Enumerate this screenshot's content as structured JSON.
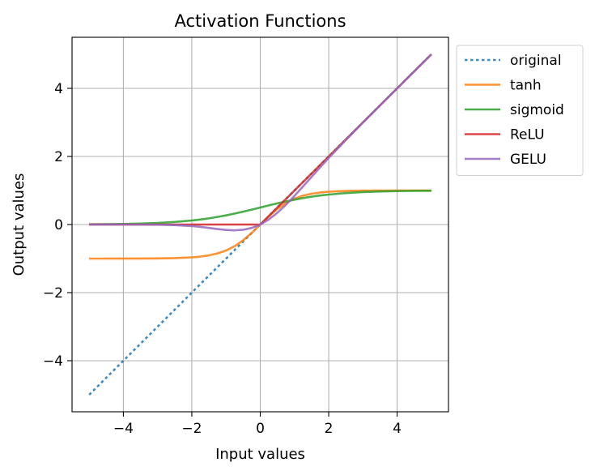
{
  "chart_data": {
    "type": "line",
    "title": "Activation Functions",
    "xlabel": "Input values",
    "ylabel": "Output values",
    "xlim": [
      -5.5,
      5.5
    ],
    "ylim": [
      -5.5,
      5.5
    ],
    "x_ticks": [
      -4,
      -2,
      0,
      2,
      4
    ],
    "y_ticks": [
      -4,
      -2,
      0,
      2,
      4
    ],
    "x_tick_labels": [
      "−4",
      "−2",
      "0",
      "2",
      "4"
    ],
    "y_tick_labels": [
      "−4",
      "−2",
      "0",
      "2",
      "4"
    ],
    "grid": true,
    "legend_position": "outside-upper-right",
    "x": [
      -5,
      -4.5,
      -4,
      -3.5,
      -3,
      -2.5,
      -2,
      -1.75,
      -1.5,
      -1.25,
      -1,
      -0.75,
      -0.5,
      -0.25,
      0,
      0.25,
      0.5,
      0.75,
      1,
      1.25,
      1.5,
      1.75,
      2,
      2.5,
      3,
      3.5,
      4,
      4.5,
      5
    ],
    "series": [
      {
        "name": "original",
        "color": "#1f77b4",
        "dash": "dotted",
        "values": [
          -5,
          -4.5,
          -4,
          -3.5,
          -3,
          -2.5,
          -2,
          -1.75,
          -1.5,
          -1.25,
          -1,
          -0.75,
          -0.5,
          -0.25,
          0,
          0.25,
          0.5,
          0.75,
          1,
          1.25,
          1.5,
          1.75,
          2,
          2.5,
          3,
          3.5,
          4,
          4.5,
          5
        ]
      },
      {
        "name": "tanh",
        "color": "#ff7f0e",
        "dash": "solid",
        "values": [
          -1.0,
          -1.0,
          -0.999,
          -0.998,
          -0.995,
          -0.987,
          -0.964,
          -0.941,
          -0.905,
          -0.848,
          -0.762,
          -0.635,
          -0.462,
          -0.245,
          0,
          0.245,
          0.462,
          0.635,
          0.762,
          0.848,
          0.905,
          0.941,
          0.964,
          0.987,
          0.995,
          0.998,
          0.999,
          1.0,
          1.0
        ]
      },
      {
        "name": "sigmoid",
        "color": "#2ca02c",
        "dash": "solid",
        "values": [
          0.007,
          0.011,
          0.018,
          0.029,
          0.047,
          0.076,
          0.119,
          0.148,
          0.182,
          0.223,
          0.269,
          0.321,
          0.378,
          0.438,
          0.5,
          0.562,
          0.622,
          0.679,
          0.731,
          0.777,
          0.818,
          0.852,
          0.881,
          0.924,
          0.953,
          0.971,
          0.982,
          0.989,
          0.993
        ]
      },
      {
        "name": "ReLU",
        "color": "#d62728",
        "dash": "solid",
        "values": [
          0,
          0,
          0,
          0,
          0,
          0,
          0,
          0,
          0,
          0,
          0,
          0,
          0,
          0,
          0,
          0.25,
          0.5,
          0.75,
          1,
          1.25,
          1.5,
          1.75,
          2,
          2.5,
          3,
          3.5,
          4,
          4.5,
          5
        ]
      },
      {
        "name": "GELU",
        "color": "#9467bd",
        "dash": "solid",
        "values": [
          0,
          0,
          0,
          -0.001,
          -0.004,
          -0.016,
          -0.045,
          -0.07,
          -0.1,
          -0.132,
          -0.159,
          -0.17,
          -0.154,
          -0.1,
          0,
          0.15,
          0.346,
          0.58,
          0.841,
          1.118,
          1.4,
          1.68,
          1.955,
          2.484,
          2.996,
          3.499,
          4.0,
          4.5,
          5.0
        ]
      }
    ]
  }
}
